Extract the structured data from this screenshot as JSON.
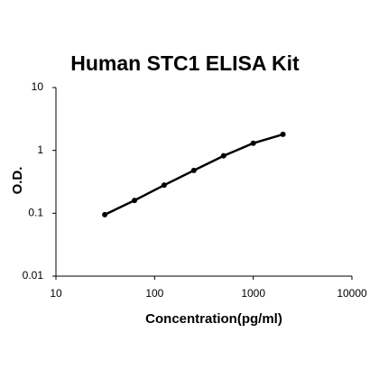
{
  "chart_data": {
    "type": "line",
    "title": "Human STC1 ELISA Kit",
    "x_label": "Concentration(pg/ml)",
    "y_label": "O.D.",
    "x": [
      31.25,
      62.5,
      125,
      250,
      500,
      1000,
      2000
    ],
    "values": [
      0.095,
      0.16,
      0.28,
      0.48,
      0.82,
      1.3,
      1.8
    ],
    "color": "#000000",
    "xscale": "log",
    "yscale": "log",
    "xlim": [
      10,
      10000
    ],
    "ylim": [
      0.01,
      10
    ],
    "xticks": [
      10,
      100,
      1000,
      10000
    ],
    "yticks": [
      0.01,
      0.1,
      1,
      10
    ]
  }
}
